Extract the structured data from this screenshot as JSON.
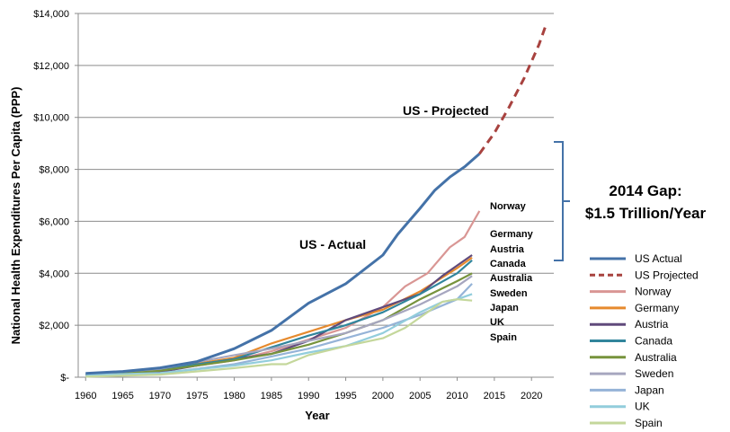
{
  "chart_data": {
    "type": "line",
    "xlabel": "Year",
    "ylabel": "National Health Expenditures Per Capita (PPP)",
    "xlim": [
      1959,
      2023
    ],
    "ylim": [
      0,
      14000
    ],
    "x_ticks": [
      1960,
      1965,
      1970,
      1975,
      1980,
      1985,
      1990,
      1995,
      2000,
      2005,
      2010,
      2015,
      2020
    ],
    "y_ticks": [
      0,
      2000,
      4000,
      6000,
      8000,
      10000,
      12000,
      14000
    ],
    "y_tick_labels": [
      "$-",
      "$2,000",
      "$4,000",
      "$6,000",
      "$8,000",
      "$10,000",
      "$12,000",
      "$14,000"
    ],
    "grid": "horizontal",
    "legend_position": "right",
    "series": [
      {
        "name": "US Actual",
        "color": "#4472A8",
        "style": "solid",
        "x": [
          1960,
          1965,
          1970,
          1975,
          1980,
          1985,
          1990,
          1995,
          2000,
          2002,
          2005,
          2007,
          2009,
          2011,
          2013
        ],
        "y": [
          150,
          220,
          360,
          600,
          1100,
          1800,
          2850,
          3600,
          4700,
          5500,
          6500,
          7200,
          7700,
          8100,
          8600
        ]
      },
      {
        "name": "US Projected",
        "color": "#A8423F",
        "style": "dashed",
        "x": [
          2013,
          2015,
          2017,
          2019,
          2021,
          2022
        ],
        "y": [
          8600,
          9400,
          10400,
          11500,
          12800,
          13600
        ]
      },
      {
        "name": "Norway",
        "color": "#D99694",
        "style": "solid",
        "x": [
          1960,
          1970,
          1980,
          1985,
          1990,
          1995,
          2000,
          2003,
          2006,
          2009,
          2011,
          2013
        ],
        "y": [
          80,
          250,
          650,
          1000,
          1450,
          1900,
          2700,
          3500,
          4000,
          5000,
          5400,
          6400
        ]
      },
      {
        "name": "Germany",
        "color": "#E68A2E",
        "style": "solid",
        "x": [
          1960,
          1970,
          1980,
          1985,
          1990,
          1995,
          2000,
          2005,
          2010,
          2012
        ],
        "y": [
          110,
          300,
          750,
          1300,
          1750,
          2200,
          2600,
          3300,
          4200,
          4600
        ]
      },
      {
        "name": "Austria",
        "color": "#604A7B",
        "style": "solid",
        "x": [
          1960,
          1970,
          1980,
          1985,
          1990,
          1995,
          2000,
          2005,
          2008,
          2010,
          2012
        ],
        "y": [
          90,
          200,
          700,
          900,
          1400,
          2200,
          2700,
          3200,
          3900,
          4300,
          4700
        ]
      },
      {
        "name": "Canada",
        "color": "#31859C",
        "style": "solid",
        "x": [
          1960,
          1970,
          1980,
          1985,
          1990,
          1995,
          2000,
          2005,
          2010,
          2012
        ],
        "y": [
          110,
          300,
          700,
          1150,
          1600,
          2000,
          2500,
          3200,
          4000,
          4500
        ]
      },
      {
        "name": "Australia",
        "color": "#77933C",
        "style": "solid",
        "x": [
          1960,
          1970,
          1980,
          1985,
          1990,
          1995,
          2000,
          2005,
          2010,
          2012
        ],
        "y": [
          90,
          250,
          650,
          900,
          1250,
          1700,
          2200,
          3000,
          3700,
          4000
        ]
      },
      {
        "name": "Sweden",
        "color": "#A6A6BF",
        "style": "solid",
        "x": [
          1960,
          1970,
          1980,
          1985,
          1990,
          1995,
          2000,
          2005,
          2010,
          2012
        ],
        "y": [
          100,
          320,
          850,
          1100,
          1400,
          1700,
          2200,
          2800,
          3500,
          3900
        ]
      },
      {
        "name": "Japan",
        "color": "#95B3D7",
        "style": "solid",
        "x": [
          1960,
          1970,
          1980,
          1985,
          1990,
          1995,
          2000,
          2005,
          2010,
          2012
        ],
        "y": [
          30,
          150,
          500,
          800,
          1100,
          1500,
          1900,
          2400,
          3000,
          3600
        ]
      },
      {
        "name": "UK",
        "color": "#92CDDC",
        "style": "solid",
        "x": [
          1960,
          1970,
          1980,
          1985,
          1990,
          1995,
          2000,
          2005,
          2008,
          2010,
          2012
        ],
        "y": [
          80,
          160,
          450,
          650,
          950,
          1200,
          1700,
          2500,
          2900,
          3000,
          3200
        ]
      },
      {
        "name": "Spain",
        "color": "#C4D79B",
        "style": "solid",
        "x": [
          1960,
          1970,
          1980,
          1985,
          1987,
          1990,
          1995,
          2000,
          2003,
          2005,
          2008,
          2010,
          2012
        ],
        "y": [
          20,
          100,
          350,
          500,
          500,
          850,
          1200,
          1500,
          1900,
          2300,
          2900,
          3000,
          2950
        ]
      }
    ],
    "annotations": {
      "us_projected": "US - Projected",
      "us_actual": "US - Actual",
      "country_labels": [
        "Norway",
        "Germany",
        "Austria",
        "Canada",
        "Australia",
        "Sweden",
        "Japan",
        "UK",
        "Spain"
      ],
      "gap_line1": "2014 Gap:",
      "gap_line2": "$1.5 Trillion/Year"
    }
  }
}
